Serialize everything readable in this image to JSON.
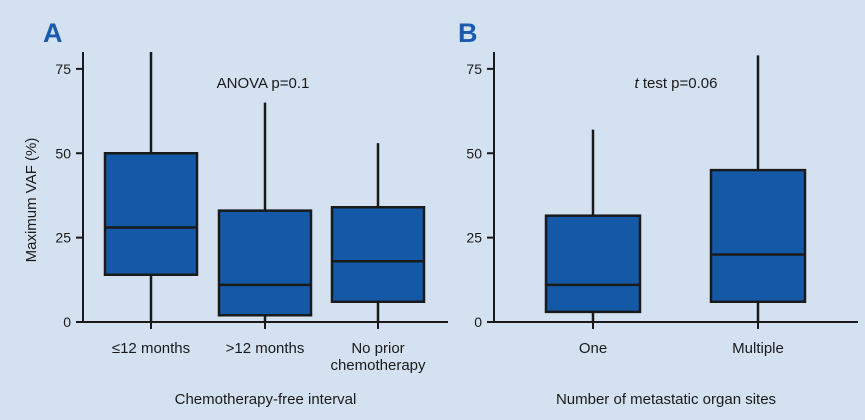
{
  "colors": {
    "background": "#d3e1f1",
    "box_fill": "#1459a8",
    "line": "#1a1a1a",
    "panel_label": "#1a5bb0"
  },
  "chart_data": [
    {
      "type": "boxplot",
      "panel_label": "A",
      "ylabel": "Maximum VAF (%)",
      "xlabel": "Chemotherapy-free interval",
      "annotation": "ANOVA p=0.1",
      "ylim": [
        0,
        80
      ],
      "yticks": [
        0,
        25,
        50,
        75
      ],
      "yticklabels": [
        "0",
        "25",
        "50",
        "75"
      ],
      "categories": [
        [
          "≤12 months"
        ],
        [
          ">12 months"
        ],
        [
          "No prior",
          "chemotherapy"
        ]
      ],
      "boxes": [
        {
          "min": 0,
          "q1": 14,
          "median": 28,
          "q3": 50,
          "max": 80
        },
        {
          "min": 0,
          "q1": 2,
          "median": 11,
          "q3": 33,
          "max": 65
        },
        {
          "min": 0,
          "q1": 6,
          "median": 18,
          "q3": 34,
          "max": 53
        }
      ]
    },
    {
      "type": "boxplot",
      "panel_label": "B",
      "ylabel": "",
      "xlabel": "Number of metastatic organ sites",
      "annotation_italic": "t",
      "annotation": " test p=0.06",
      "ylim": [
        0,
        80
      ],
      "yticks": [
        0,
        25,
        50,
        75
      ],
      "yticklabels": [
        "0",
        "25",
        "50",
        "75"
      ],
      "categories": [
        [
          "One"
        ],
        [
          "Multiple"
        ]
      ],
      "boxes": [
        {
          "min": 0,
          "q1": 3,
          "median": 11,
          "q3": 31.5,
          "max": 57
        },
        {
          "min": 0,
          "q1": 6,
          "median": 20,
          "q3": 45,
          "max": 79
        }
      ]
    }
  ]
}
